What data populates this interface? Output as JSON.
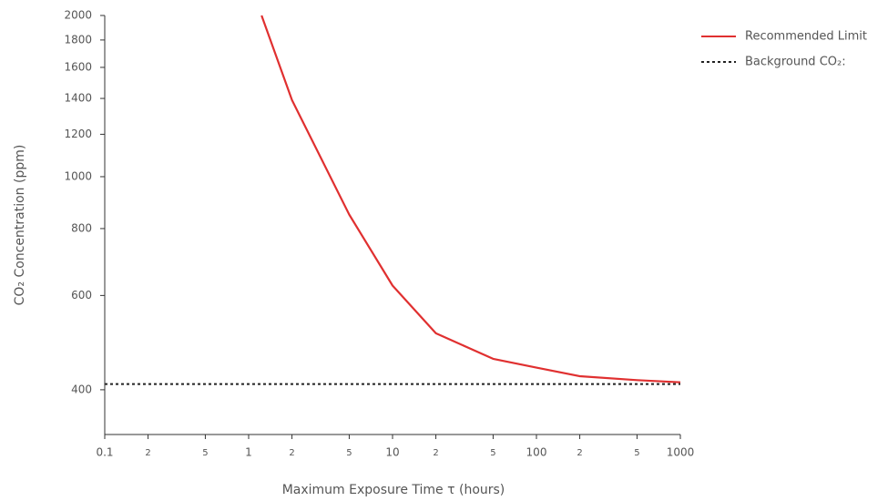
{
  "chart_data": {
    "type": "line",
    "x_label": "Maximum Exposure Time τ (hours)",
    "y_label": "CO₂ Concentration (ppm)",
    "xscale": "log",
    "yscale": "log",
    "xlim": [
      0.1,
      1000
    ],
    "ylim": [
      330,
      2000
    ],
    "xticks": [
      0.1,
      {
        "value": 0.2,
        "label": "2"
      },
      {
        "value": 0.5,
        "label": "5"
      },
      1,
      {
        "value": 2,
        "label": "2"
      },
      {
        "value": 5,
        "label": "5"
      },
      10,
      {
        "value": 20,
        "label": "2"
      },
      {
        "value": 50,
        "label": "5"
      },
      100,
      {
        "value": 200,
        "label": "2"
      },
      {
        "value": 500,
        "label": "5"
      },
      1000
    ],
    "yticks": [
      400,
      600,
      800,
      1000,
      1200,
      1400,
      1600,
      1800,
      2000
    ],
    "grid": false,
    "legend_position": "upper right",
    "series": [
      {
        "name": "Recommended Limit",
        "color": "#e03030",
        "style": "solid",
        "x": [
          1.23,
          2,
          5,
          10,
          20,
          50,
          100,
          200,
          500,
          1000
        ],
        "values": [
          2000,
          1390,
          850,
          626,
          510,
          457,
          440,
          424,
          417,
          413
        ]
      },
      {
        "name": "Background CO₂:",
        "color": "#222222",
        "style": "dotted",
        "x": [
          0.1,
          1000
        ],
        "values": [
          410,
          410
        ]
      }
    ]
  }
}
